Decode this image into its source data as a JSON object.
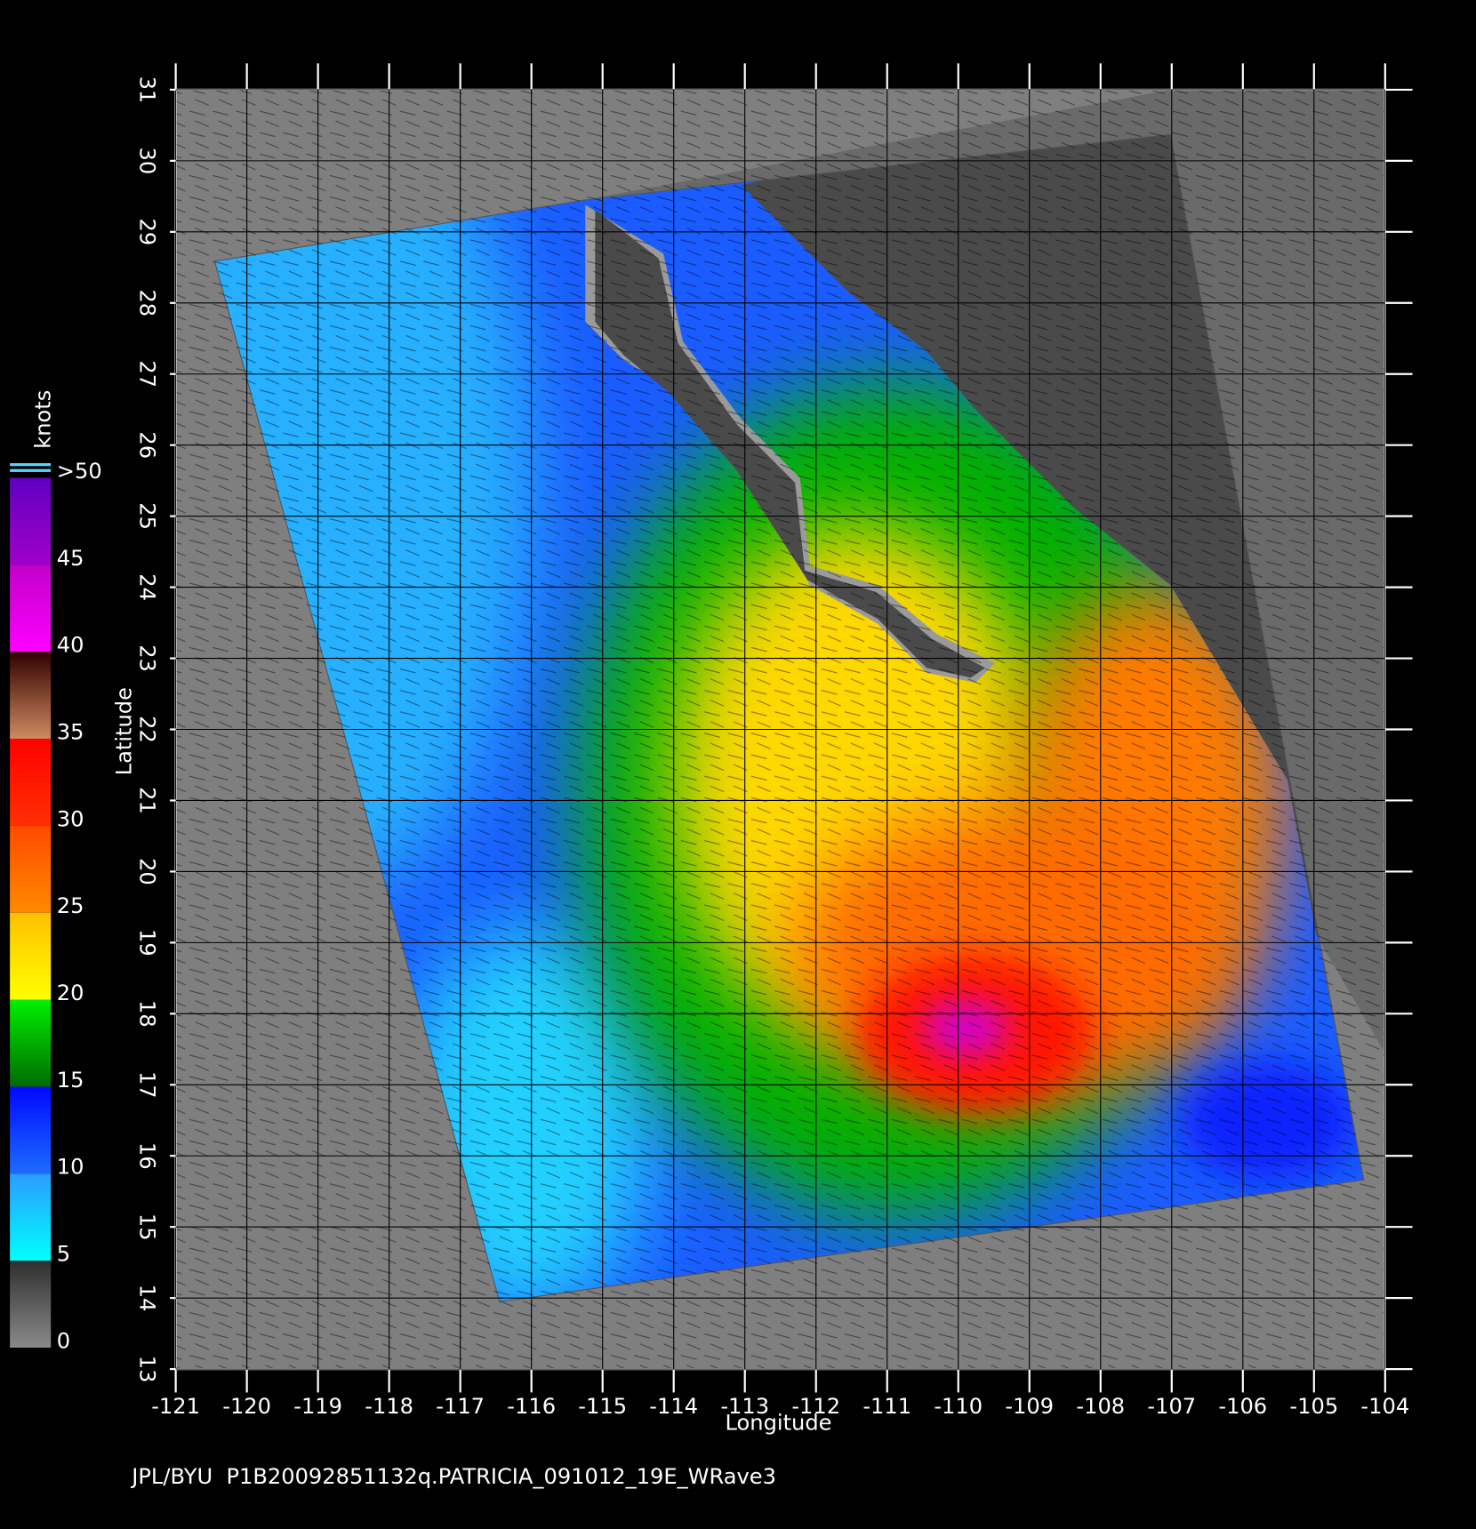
{
  "map": {
    "xlabel": "Longitude",
    "ylabel": "Latitude",
    "xlim": [
      -121,
      -104
    ],
    "ylim": [
      13,
      31
    ],
    "xticks": [
      -121,
      -120,
      -119,
      -118,
      -117,
      -116,
      -115,
      -114,
      -113,
      -112,
      -111,
      -110,
      -109,
      -108,
      -107,
      -106,
      -105,
      -104
    ],
    "yticks": [
      13,
      14,
      15,
      16,
      17,
      18,
      19,
      20,
      21,
      22,
      23,
      24,
      25,
      26,
      27,
      28,
      29,
      30,
      31
    ],
    "grid": true
  },
  "colorbar": {
    "unit": "knots",
    "ticks": [
      0,
      5,
      10,
      15,
      20,
      25,
      30,
      35,
      40,
      45,
      {
        "value": 50,
        "label": ">50"
      }
    ],
    "colors": [
      [
        "#8a8a8a",
        "#2e2e2e"
      ],
      [
        "#00ffff",
        "#2a9cff"
      ],
      [
        "#1e6cff",
        "#0008ff"
      ],
      [
        "#006a00",
        "#00f000"
      ],
      [
        "#ffff00",
        "#ffc000"
      ],
      [
        "#ff8a00",
        "#ff4a00"
      ],
      [
        "#ff3000",
        "#ff0000"
      ],
      [
        "#d08a60",
        "#300000"
      ],
      [
        "#ff00ff",
        "#c000c8"
      ],
      [
        "#a000c8",
        "#6000c0"
      ]
    ]
  },
  "footer": "JPL/BYU  P1B20092851132q.PATRICIA_091012_19E_WRave3"
}
